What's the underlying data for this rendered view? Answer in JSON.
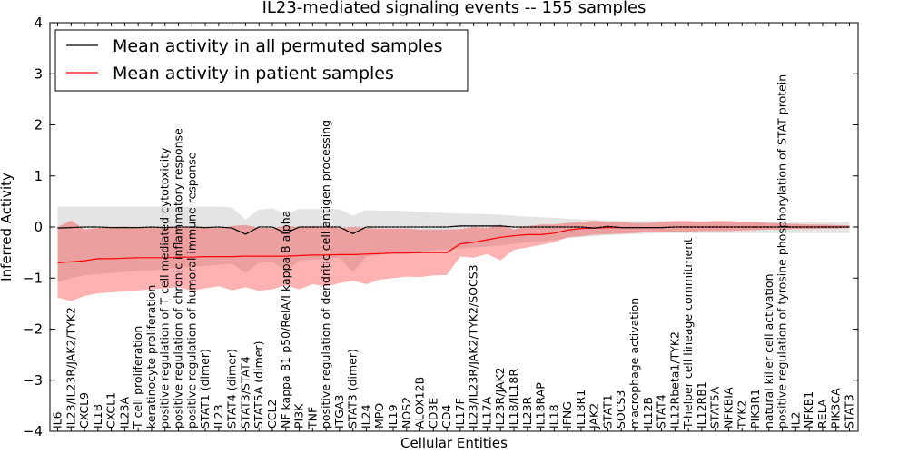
{
  "chart_data": {
    "type": "line",
    "title": "IL23-mediated signaling events -- 155 samples",
    "xlabel": "Cellular Entities",
    "ylabel": "Inferred Activity",
    "ylim": [
      -4,
      4
    ],
    "yticks": [
      -4,
      -3,
      -2,
      -1,
      0,
      1,
      2,
      3,
      4
    ],
    "legend_position": "upper-left",
    "categories": [
      "IL6",
      "IL23/IL23R/JAK2/TYK2",
      "CXCL9",
      "IL1B",
      "CXCL1",
      "IL23A",
      "T cell proliferation",
      "keratinocyte proliferation",
      "positive regulation of T cell mediated cytotoxicity",
      "positive regulation of chronic inflammatory response",
      "positive regulation of humoral immune response",
      "STAT1 (dimer)",
      "IL23",
      "STAT4 (dimer)",
      "STAT3/STAT4",
      "STAT5A (dimer)",
      "CCL2",
      "NF kappa B1 p50/RelA/I kappa B alpha",
      "PI3K",
      "TNF",
      "positive regulation of dendritic cell antigen processing",
      "ITGA3",
      "STAT3 (dimer)",
      "IL24",
      "MPO",
      "IL19",
      "NOS2",
      "ALOX12B",
      "CD3E",
      "CD4",
      "IL17F",
      "IL23/IL23R/JAK2/TYK2/SOCS3",
      "IL17A",
      "IL23R/JAK2",
      "IL18/IL18R",
      "IL23R",
      "IL18RAP",
      "IL18",
      "IFNG",
      "IL18R1",
      "JAK2",
      "STAT1",
      "SOCS3",
      "macrophage activation",
      "IL12B",
      "STAT4",
      "IL12Rbeta1/TYK2",
      "T-helper cell lineage commitment",
      "IL12RB1",
      "STAT5A",
      "NFKBIA",
      "TYK2",
      "PIK3R1",
      "natural killer cell activation",
      "positive regulation of tyrosine phosphorylation of STAT protein",
      "IL2",
      "NFKB1",
      "RELA",
      "PIK3CA",
      "STAT3"
    ],
    "series": [
      {
        "name": "Mean activity in all permuted samples",
        "color": "#000000",
        "values": [
          -0.02,
          -0.01,
          0.0,
          0.0,
          -0.01,
          -0.01,
          -0.01,
          0.0,
          -0.01,
          0.0,
          0.0,
          -0.01,
          0.0,
          -0.02,
          -0.14,
          0.0,
          0.0,
          -0.12,
          0.0,
          0.0,
          0.0,
          0.0,
          -0.13,
          0.0,
          0.0,
          0.0,
          0.0,
          0.0,
          0.0,
          0.0,
          0.02,
          0.02,
          0.02,
          0.02,
          0.0,
          0.0,
          0.0,
          0.0,
          0.0,
          0.0,
          -0.02,
          0.01,
          -0.01,
          -0.01,
          -0.01,
          -0.01,
          0.0,
          0.0,
          0.0,
          0.0,
          0.0,
          0.0,
          0.0,
          0.0,
          0.0,
          0.0,
          0.0,
          0.0,
          0.0,
          0.0
        ],
        "band_low": [
          -1.08,
          -1.0,
          -0.95,
          -0.92,
          -0.9,
          -0.88,
          -0.86,
          -0.85,
          -0.82,
          -0.8,
          -0.78,
          -0.76,
          -0.74,
          -0.72,
          -0.9,
          -0.7,
          -0.68,
          -0.86,
          -0.66,
          -0.64,
          -0.62,
          -0.6,
          -0.88,
          -0.58,
          -0.55,
          -0.52,
          -0.5,
          -0.48,
          -0.46,
          -0.44,
          -0.42,
          -0.4,
          -0.38,
          -0.36,
          -0.33,
          -0.3,
          -0.28,
          -0.25,
          -0.22,
          -0.2,
          -0.18,
          -0.16,
          -0.15,
          -0.14,
          -0.13,
          -0.12,
          -0.12,
          -0.12,
          -0.12,
          -0.12,
          -0.12,
          -0.12,
          -0.12,
          -0.12,
          -0.12,
          -0.12,
          -0.12,
          -0.12,
          -0.12,
          -0.12
        ],
        "band_high": [
          0.4,
          0.4,
          0.4,
          0.4,
          0.4,
          0.4,
          0.4,
          0.4,
          0.4,
          0.4,
          0.4,
          0.4,
          0.4,
          0.38,
          0.15,
          0.34,
          0.37,
          0.25,
          0.35,
          0.35,
          0.35,
          0.35,
          0.22,
          0.33,
          0.32,
          0.32,
          0.31,
          0.3,
          0.28,
          0.27,
          0.26,
          0.26,
          0.25,
          0.24,
          0.22,
          0.2,
          0.19,
          0.18,
          0.16,
          0.15,
          0.14,
          0.13,
          0.12,
          0.12,
          0.12,
          0.12,
          0.11,
          0.11,
          0.11,
          0.11,
          0.11,
          0.11,
          0.1,
          0.1,
          0.1,
          0.1,
          0.1,
          0.1,
          0.1,
          0.1
        ]
      },
      {
        "name": "Mean activity in patient samples",
        "color": "#ff0000",
        "values": [
          -0.7,
          -0.68,
          -0.66,
          -0.62,
          -0.62,
          -0.61,
          -0.6,
          -0.6,
          -0.6,
          -0.59,
          -0.59,
          -0.58,
          -0.58,
          -0.58,
          -0.57,
          -0.57,
          -0.57,
          -0.57,
          -0.56,
          -0.55,
          -0.55,
          -0.54,
          -0.54,
          -0.53,
          -0.52,
          -0.51,
          -0.51,
          -0.5,
          -0.5,
          -0.5,
          -0.33,
          -0.3,
          -0.25,
          -0.2,
          -0.17,
          -0.15,
          -0.15,
          -0.12,
          -0.06,
          -0.03,
          -0.02,
          -0.01,
          -0.01,
          -0.01,
          -0.01,
          -0.01,
          0.0,
          0.0,
          0.0,
          0.0,
          0.0,
          0.0,
          0.0,
          0.0,
          0.0,
          0.0,
          0.0,
          0.0,
          0.0,
          0.0
        ],
        "band_low": [
          -1.38,
          -1.45,
          -1.35,
          -1.3,
          -1.28,
          -1.26,
          -1.24,
          -1.22,
          -1.2,
          -1.18,
          -1.25,
          -1.2,
          -1.16,
          -1.24,
          -1.18,
          -1.25,
          -1.22,
          -1.14,
          -1.22,
          -1.12,
          -1.16,
          -1.1,
          -1.05,
          -1.12,
          -1.03,
          -1.0,
          -0.97,
          -0.98,
          -0.95,
          -0.94,
          -0.58,
          -0.6,
          -0.53,
          -0.65,
          -0.45,
          -0.4,
          -0.35,
          -0.3,
          -0.2,
          -0.18,
          -0.15,
          -0.14,
          -0.13,
          -0.12,
          -0.1,
          -0.1,
          -0.09,
          -0.09,
          -0.08,
          -0.08,
          -0.08,
          -0.07,
          -0.06,
          -0.05,
          -0.05,
          -0.04,
          -0.04,
          -0.03,
          -0.03,
          -0.02
        ],
        "band_high": [
          0.0,
          0.13,
          -0.05,
          -0.02,
          0.0,
          0.01,
          -0.02,
          -0.01,
          0.0,
          0.0,
          0.0,
          -0.02,
          -0.02,
          0.02,
          0.04,
          -0.02,
          -0.02,
          0.02,
          0.0,
          0.02,
          0.0,
          -0.02,
          0.0,
          -0.02,
          -0.03,
          -0.03,
          -0.03,
          -0.05,
          -0.05,
          -0.05,
          -0.04,
          0.0,
          -0.02,
          0.05,
          -0.05,
          0.02,
          0.05,
          0.05,
          0.08,
          0.1,
          0.12,
          0.1,
          0.1,
          0.08,
          0.08,
          0.1,
          0.12,
          0.12,
          0.1,
          0.12,
          0.12,
          0.1,
          0.1,
          0.08,
          0.07,
          0.06,
          0.05,
          0.05,
          0.04,
          0.03
        ]
      }
    ]
  }
}
